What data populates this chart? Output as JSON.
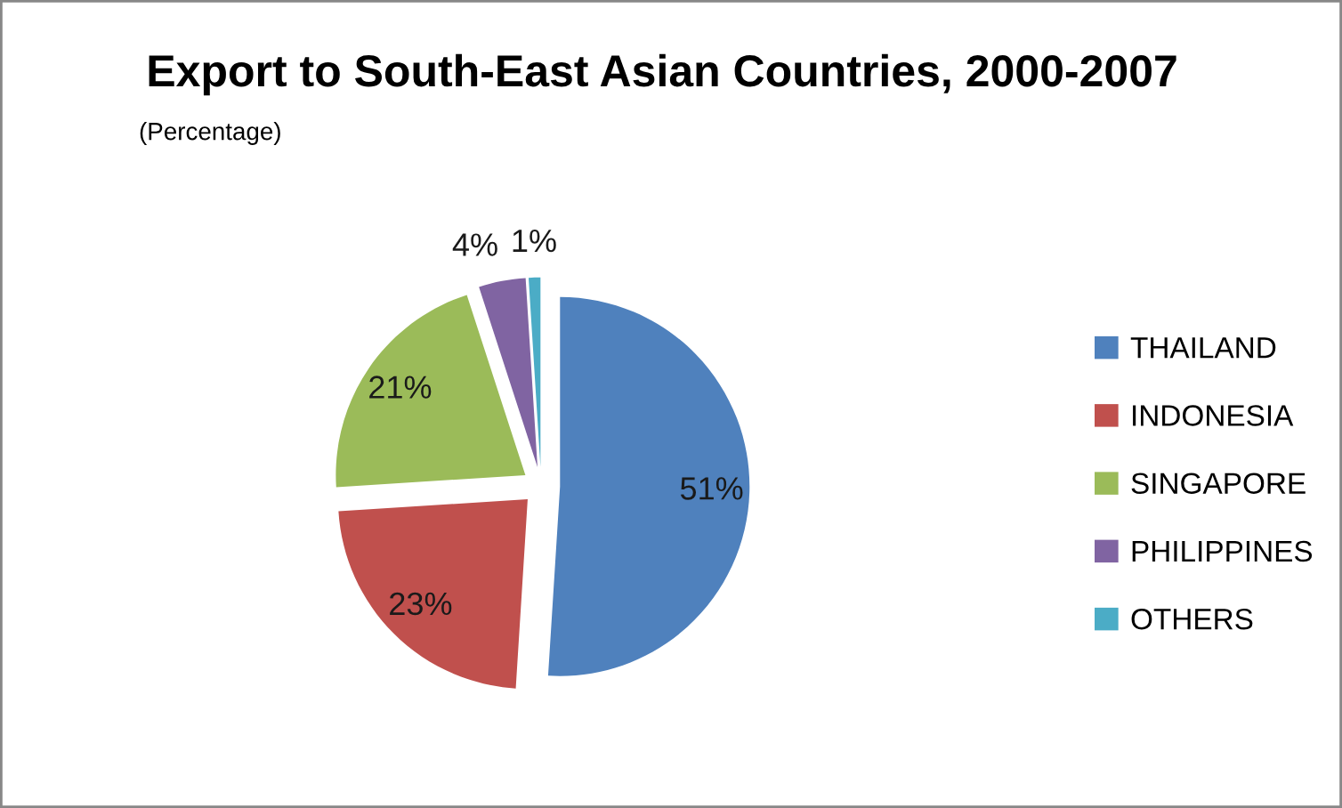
{
  "chart_data": {
    "type": "pie",
    "title": "Export to South-East Asian Countries, 2000-2007",
    "subtitle": "(Percentage)",
    "categories": [
      "THAILAND",
      "INDONESIA",
      "SINGAPORE",
      "PHILIPPINES",
      "OTHERS"
    ],
    "values": [
      51,
      23,
      21,
      4,
      1
    ],
    "value_labels": [
      "51%",
      "23%",
      "21%",
      "4%",
      "1%"
    ],
    "colors": [
      "#4f81bd",
      "#c0504d",
      "#9bbb59",
      "#8064a2",
      "#4bacc6"
    ],
    "legend": "right"
  }
}
